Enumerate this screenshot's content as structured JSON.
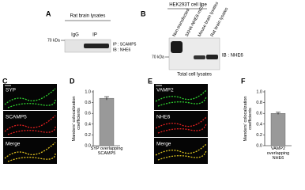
{
  "panel_labels": [
    "A",
    "B",
    "C",
    "D",
    "E",
    "F"
  ],
  "panel_a": {
    "title": "Rat brain lysates",
    "lanes": [
      "IgG",
      "IP"
    ],
    "marker": "70 kDa",
    "annotations": [
      "IP : SCAMP5",
      "IB : NHE6"
    ]
  },
  "panel_b": {
    "title": "HEK293T cell line",
    "lanes": [
      "Non-transfected",
      "3XHA-NHE6-mCh",
      "Mouse brain lysates",
      "Rat brain lysates"
    ],
    "marker": "70 kDa",
    "annotation": "IB : NHE6",
    "caption": "Total cell lysates"
  },
  "panel_c": {
    "channels": [
      "SYP",
      "SCAMP5",
      "Merge"
    ]
  },
  "panel_e": {
    "channels": [
      "VAMP2",
      "NHE6",
      "Merge"
    ]
  },
  "chart_data": [
    {
      "type": "bar",
      "ylabel": "Manders' colocalization coefficients",
      "categories": [
        "SYP overlapping SCAMP5"
      ],
      "values": [
        0.88
      ],
      "errors": [
        0.03
      ],
      "color": "#999999",
      "ylim": [
        0,
        1
      ],
      "yticks": [
        {
          "value": 0,
          "label": "0.0"
        },
        0.2,
        0.4,
        0.6,
        0.8,
        {
          "value": 1,
          "label": "1.0"
        }
      ]
    },
    {
      "type": "bar",
      "ylabel": "Manders' colocalization coefficients",
      "categories": [
        "VAMP2 overlapping NHE6"
      ],
      "values": [
        0.6
      ],
      "errors": [
        0.02
      ],
      "color": "#999999",
      "ylim": [
        0,
        1
      ],
      "yticks": [
        {
          "value": 0,
          "label": "0.0"
        },
        0.2,
        0.4,
        0.6,
        0.8,
        {
          "value": 1,
          "label": "1.0"
        }
      ]
    }
  ]
}
